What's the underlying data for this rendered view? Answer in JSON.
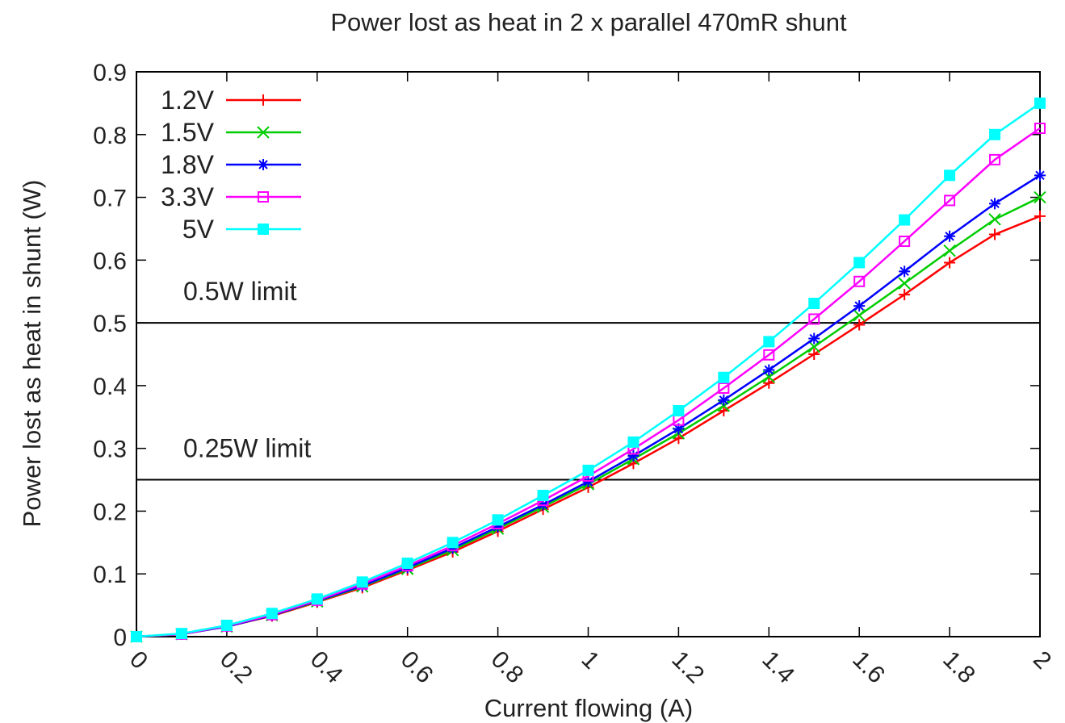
{
  "chart_data": {
    "type": "line",
    "title": "Power lost as heat in 2 x parallel 470mR shunt",
    "xlabel": "Current flowing (A)",
    "ylabel": "Power lost as heat in shunt (W)",
    "xlim": [
      0,
      2
    ],
    "ylim": [
      0,
      0.9
    ],
    "x_ticks": [
      "0",
      "0.2",
      "0.4",
      "0.6",
      "0.8",
      "1",
      "1.2",
      "1.4",
      "1.6",
      "1.8",
      "2"
    ],
    "y_ticks": [
      "0",
      "0.1",
      "0.2",
      "0.3",
      "0.4",
      "0.5",
      "0.6",
      "0.7",
      "0.8",
      "0.9"
    ],
    "grid": false,
    "legend_position": "top-left",
    "x": [
      0,
      0.1,
      0.2,
      0.3,
      0.4,
      0.5,
      0.6,
      0.7,
      0.8,
      0.9,
      1.0,
      1.1,
      1.2,
      1.3,
      1.4,
      1.5,
      1.6,
      1.7,
      1.8,
      1.9,
      2.0
    ],
    "series": [
      {
        "name": "1.2V",
        "color": "#ff0000",
        "marker": "plus",
        "values": [
          0,
          0.004,
          0.016,
          0.033,
          0.055,
          0.078,
          0.106,
          0.135,
          0.168,
          0.203,
          0.238,
          0.276,
          0.316,
          0.36,
          0.404,
          0.45,
          0.497,
          0.545,
          0.596,
          0.641,
          0.67
        ]
      },
      {
        "name": "1.5V",
        "color": "#00cc00",
        "marker": "cross",
        "values": [
          0,
          0.004,
          0.016,
          0.034,
          0.056,
          0.08,
          0.108,
          0.138,
          0.172,
          0.207,
          0.243,
          0.283,
          0.324,
          0.368,
          0.414,
          0.462,
          0.512,
          0.563,
          0.615,
          0.665,
          0.7
        ]
      },
      {
        "name": "1.8V",
        "color": "#0000ff",
        "marker": "star",
        "values": [
          0,
          0.004,
          0.016,
          0.034,
          0.057,
          0.081,
          0.11,
          0.141,
          0.175,
          0.21,
          0.247,
          0.288,
          0.331,
          0.377,
          0.425,
          0.475,
          0.527,
          0.582,
          0.638,
          0.69,
          0.735
        ]
      },
      {
        "name": "3.3V",
        "color": "#ff00ff",
        "marker": "open-square",
        "values": [
          0,
          0.004,
          0.017,
          0.035,
          0.058,
          0.084,
          0.113,
          0.145,
          0.18,
          0.217,
          0.256,
          0.299,
          0.345,
          0.396,
          0.449,
          0.506,
          0.566,
          0.63,
          0.695,
          0.76,
          0.81
        ]
      },
      {
        "name": "5V",
        "color": "#00ffff",
        "marker": "filled-square",
        "values": [
          0,
          0.005,
          0.018,
          0.037,
          0.06,
          0.087,
          0.117,
          0.15,
          0.186,
          0.225,
          0.265,
          0.31,
          0.36,
          0.413,
          0.47,
          0.531,
          0.596,
          0.664,
          0.735,
          0.8,
          0.85
        ]
      }
    ],
    "reference_lines": [
      {
        "y": 0.5,
        "label": "0.5W limit"
      },
      {
        "y": 0.25,
        "label": "0.25W limit"
      }
    ]
  }
}
